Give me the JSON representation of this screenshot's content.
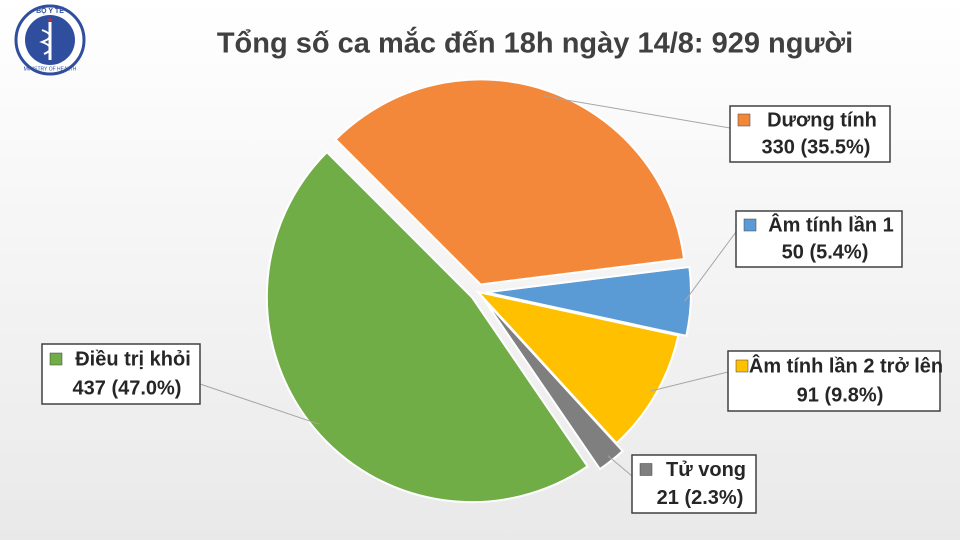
{
  "logo": {
    "top": "BỘ Y TẾ",
    "bottom": "MINISTRY OF HEALTH"
  },
  "chart_data": {
    "type": "pie",
    "title": "Tổng số ca mắc đến 18h ngày 14/8: 929 người",
    "categories": [
      "Dương tính",
      "Âm tính lần 1",
      "Âm tính lần 2 trở lên",
      "Tử vong",
      "Điều trị khỏi"
    ],
    "values": [
      330,
      50,
      91,
      21,
      437
    ],
    "value_labels": [
      "330 (35.5%)",
      "50 (5.4%)",
      "91 (9.8%)",
      "21 (2.3%)",
      "437 (47.0%)"
    ],
    "colors": [
      "#f4883a",
      "#5b9bd5",
      "#ffc000",
      "#7f7f7f",
      "#70ad47"
    ]
  }
}
